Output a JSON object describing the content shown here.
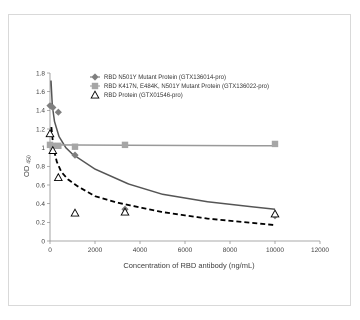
{
  "chart_data": {
    "type": "scatter",
    "title": "",
    "xlabel": "Concentration of RBD antibody (ng/mL)",
    "ylabel_main": "OD",
    "ylabel_sub": "450",
    "xlim": [
      0,
      12000
    ],
    "ylim": [
      0,
      1.8
    ],
    "x_ticks": [
      0,
      2000,
      4000,
      6000,
      8000,
      10000,
      12000
    ],
    "y_ticks": [
      "0",
      "0.2",
      "0.4",
      "0.6",
      "0.8",
      "1",
      "1.2",
      "1.4",
      "1.6",
      "1.8"
    ],
    "grid": false,
    "legend_position": "top-right",
    "series": [
      {
        "name": "RBD N501Y Mutant Protein (GTX136014-pro)",
        "marker": "diamond",
        "color": "#7f7f7f",
        "x": [
          0,
          125,
          370,
          1111,
          3333,
          10000
        ],
        "y": [
          1.45,
          1.43,
          1.38,
          0.92,
          0.34,
          0.27
        ],
        "trend": "solid"
      },
      {
        "name": "RBD K417N, E484K, N501Y Mutant Protein (GTX136022-pro)",
        "marker": "square",
        "color": "#a6a6a6",
        "x": [
          0,
          125,
          370,
          1111,
          3333,
          10000
        ],
        "y": [
          1.03,
          1.02,
          1.02,
          1.01,
          1.03,
          1.04
        ],
        "trend": "solid"
      },
      {
        "name": "RBD Protein (GTX01546-pro)",
        "marker": "triangle",
        "color": "#000000",
        "x": [
          0,
          125,
          370,
          1111,
          3333,
          10000
        ],
        "y": [
          1.15,
          0.97,
          0.68,
          0.3,
          0.31,
          0.29
        ],
        "trend": "dashed"
      }
    ],
    "trendlines": [
      {
        "series": 0,
        "color": "#555555",
        "style": "solid",
        "x": [
          45,
          100,
          200,
          400,
          700,
          1000,
          2000,
          3500,
          5000,
          7000,
          10000
        ],
        "y": [
          1.72,
          1.45,
          1.28,
          1.12,
          1.0,
          0.93,
          0.77,
          0.61,
          0.5,
          0.42,
          0.34
        ]
      },
      {
        "series": 1,
        "color": "#999999",
        "style": "solid",
        "x": [
          0,
          10000
        ],
        "y": [
          1.03,
          1.02
        ]
      },
      {
        "series": 2,
        "color": "#000000",
        "style": "dashed",
        "x": [
          60,
          150,
          300,
          500,
          800,
          1200,
          2000,
          3000,
          5000,
          7000,
          10000
        ],
        "y": [
          1.22,
          1.0,
          0.85,
          0.74,
          0.66,
          0.59,
          0.48,
          0.41,
          0.31,
          0.24,
          0.17
        ]
      }
    ]
  }
}
